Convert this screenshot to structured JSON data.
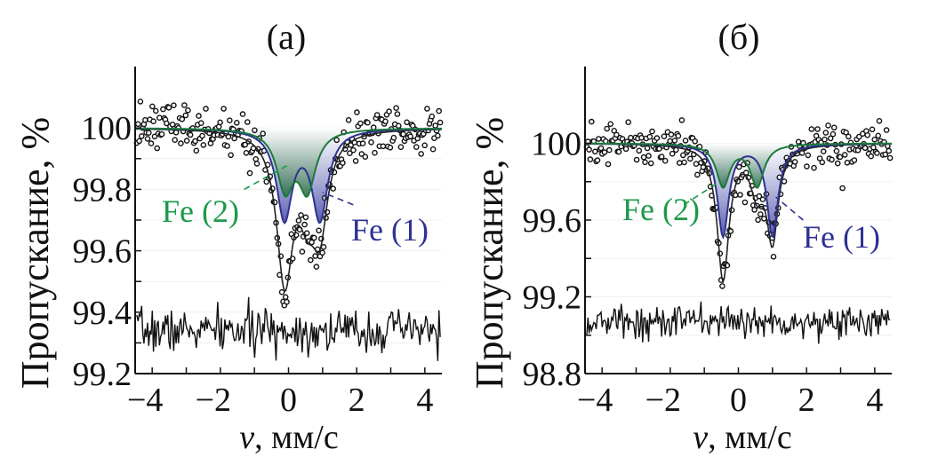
{
  "chart_data": [
    {
      "type": "scatter",
      "panel": "(a)",
      "title": "(a)",
      "xlabel_italic": "v",
      "xlabel_rest": ", мм/с",
      "ylabel": "Пропускание, %",
      "xlim": [
        -4.5,
        4.5
      ],
      "ylim": [
        99.2,
        100.2
      ],
      "xticks": [
        -4,
        -2,
        0,
        2,
        4
      ],
      "xtick_labels": [
        "−4",
        "−2",
        "0",
        "2",
        "4"
      ],
      "yticks": [
        99.2,
        99.4,
        99.6,
        99.8,
        100
      ],
      "ytick_labels": [
        "99.2",
        "99.4",
        "99.6",
        "99.8",
        "100"
      ],
      "minor_yticks": [
        99.3,
        99.5,
        99.7,
        99.9
      ],
      "minor_xticks": [
        -3,
        -1,
        1,
        3
      ],
      "baseline": 100.0,
      "noise_sd": 0.035,
      "residual_offset": 99.34,
      "residual_sd": 0.035,
      "seed": 7,
      "components": [
        {
          "name": "Fe (1)",
          "color": "#2e3192",
          "fill_top": "#c7c8e8",
          "fill_bottom": "#3a3fa0",
          "peaks": [
            {
              "x": -0.12,
              "depth": 0.29,
              "hwhm": 0.28
            },
            {
              "x": 0.92,
              "depth": 0.29,
              "hwhm": 0.28
            }
          ]
        },
        {
          "name": "Fe (2)",
          "color": "#1b7a3a",
          "fill_top": "#e8f2ec",
          "fill_bottom": "#2a6b4a",
          "peaks": [
            {
              "x": -0.1,
              "depth": 0.19,
              "hwhm": 0.3
            },
            {
              "x": 0.55,
              "depth": 0.19,
              "hwhm": 0.3
            }
          ]
        }
      ],
      "annotations": [
        {
          "text": "Fe (2)",
          "color": "#1a9a4a",
          "series": "Fe (2)",
          "at": [
            -2.7,
            99.765
          ],
          "line_from": [
            -1.3,
            99.8
          ],
          "line_to": [
            0.0,
            99.88
          ]
        },
        {
          "text": "Fe (1)",
          "color": "#2e3192",
          "series": "Fe (1)",
          "at": [
            2.1,
            99.72
          ],
          "line_from": [
            1.9,
            99.75
          ],
          "line_to": [
            1.0,
            99.79
          ]
        }
      ]
    },
    {
      "type": "scatter",
      "panel": "(б)",
      "title": "(б)",
      "xlabel_italic": "v",
      "xlabel_rest": ", мм/с",
      "ylabel": "Пропускание, %",
      "xlim": [
        -4.5,
        4.5
      ],
      "ylim": [
        98.8,
        100.4
      ],
      "xticks": [
        -4,
        -2,
        0,
        2,
        4
      ],
      "xtick_labels": [
        "−4",
        "−2",
        "0",
        "2",
        "4"
      ],
      "yticks": [
        98.8,
        99.2,
        99.6,
        100
      ],
      "ytick_labels": [
        "98.8",
        "99.2",
        "99.6",
        "100"
      ],
      "minor_yticks": [
        99.0,
        99.4,
        99.8
      ],
      "minor_xticks": [
        -3,
        -1,
        1,
        3
      ],
      "baseline": 100.0,
      "noise_sd": 0.05,
      "residual_offset": 99.07,
      "residual_sd": 0.045,
      "seed": 13,
      "components": [
        {
          "name": "Fe (1)",
          "color": "#2e3192",
          "fill_top": "#c7c8e8",
          "fill_bottom": "#3a3fa0",
          "peaks": [
            {
              "x": -0.45,
              "depth": 0.48,
              "hwhm": 0.2
            },
            {
              "x": 1.0,
              "depth": 0.48,
              "hwhm": 0.2
            }
          ]
        },
        {
          "name": "Fe (2)",
          "color": "#1b7a3a",
          "fill_top": "#e8f2ec",
          "fill_bottom": "#2a6b4a",
          "peaks": [
            {
              "x": -0.45,
              "depth": 0.22,
              "hwhm": 0.24
            },
            {
              "x": 0.55,
              "depth": 0.22,
              "hwhm": 0.24
            }
          ]
        }
      ],
      "annotations": [
        {
          "text": "Fe (2)",
          "color": "#1a9a4a",
          "series": "Fe (2)",
          "at": [
            -3.4,
            99.6
          ],
          "line_from": [
            -1.6,
            99.68
          ],
          "line_to": [
            -0.55,
            99.8
          ]
        },
        {
          "text": "Fe (1)",
          "color": "#2e3192",
          "series": "Fe (1)",
          "at": [
            1.9,
            99.5
          ],
          "line_from": [
            1.9,
            99.6
          ],
          "line_to": [
            1.1,
            99.72
          ]
        }
      ]
    }
  ]
}
